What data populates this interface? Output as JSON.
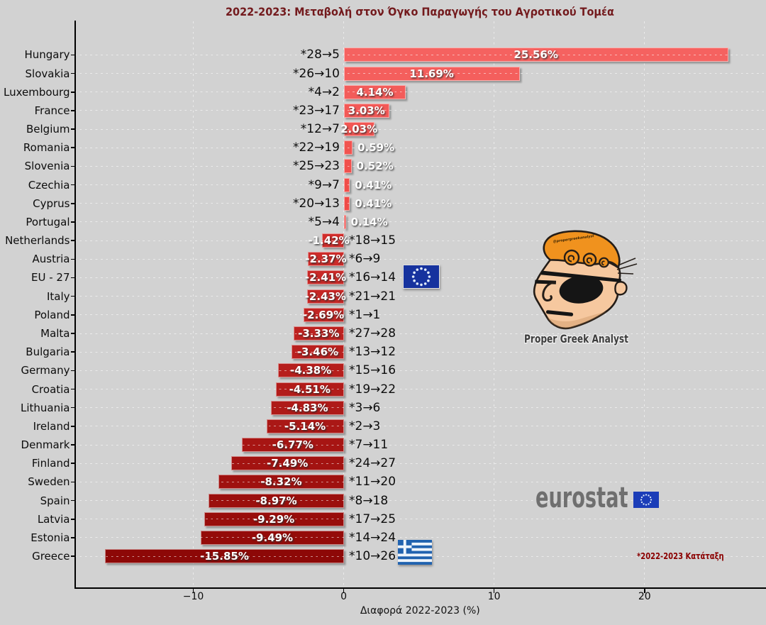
{
  "title": "2022-2023: Μεταβολή στον Όγκο Παραγωγής του Αγροτικού Τομέα",
  "title_color": "#731a1d",
  "chart_data": {
    "type": "bar",
    "orientation": "horizontal",
    "title": "2022-2023: Μεταβολή στον Όγκο Παραγωγής του Αγροτικού Τομέα",
    "xlabel": "Διαφορά 2022-2023 (%)",
    "ylabel": "",
    "xlim": [
      -17.9,
      28.1
    ],
    "xticks": [
      -10,
      0,
      10,
      20
    ],
    "xtick_labels": [
      "−10",
      "0",
      "10",
      "20"
    ],
    "grid": {
      "horizontal": true,
      "vertical": true,
      "style": "white dashed"
    },
    "legend": null,
    "background": "#d2d2d2",
    "categories": [
      "Hungary",
      "Slovakia",
      "Luxembourg",
      "France",
      "Belgium",
      "Romania",
      "Slovenia",
      "Czechia",
      "Cyprus",
      "Portugal",
      "Netherlands",
      "Austria",
      "EU - 27",
      "Italy",
      "Poland",
      "Malta",
      "Bulgaria",
      "Germany",
      "Croatia",
      "Lithuania",
      "Ireland",
      "Denmark",
      "Finland",
      "Sweden",
      "Spain",
      "Latvia",
      "Estonia",
      "Greece"
    ],
    "values": [
      25.56,
      11.69,
      4.14,
      3.03,
      2.03,
      0.59,
      0.52,
      0.41,
      0.41,
      0.14,
      -1.42,
      -2.37,
      -2.41,
      -2.43,
      -2.69,
      -3.33,
      -3.46,
      -4.38,
      -4.51,
      -4.83,
      -5.14,
      -6.77,
      -7.49,
      -8.32,
      -8.97,
      -9.29,
      -9.49,
      -15.85
    ],
    "value_labels": [
      "25.56%",
      "11.69%",
      "4.14%",
      "3.03%",
      "2.03%",
      "0.59%",
      "0.52%",
      "0.41%",
      "0.41%",
      "0.14%",
      "-1.42%",
      "-2.37%",
      "-2.41%",
      "-2.43%",
      "-2.69%",
      "-3.33%",
      "-3.46%",
      "-4.38%",
      "-4.51%",
      "-4.83%",
      "-5.14%",
      "-6.77%",
      "-7.49%",
      "-8.32%",
      "-8.97%",
      "-9.29%",
      "-9.49%",
      "-15.85%"
    ],
    "rank_labels": [
      "*28→5",
      "*26→10",
      "*4→2",
      "*23→17",
      "*12→7",
      "*22→19",
      "*25→23",
      "*9→7",
      "*20→13",
      "*5→4",
      "*18→15",
      "*6→9",
      "*16→14",
      "*21→21",
      "*1→1",
      "*27→28",
      "*13→12",
      "*15→16",
      "*19→22",
      "*3→6",
      "*2→3",
      "*7→11",
      "*24→27",
      "*11→20",
      "*8→18",
      "*17→25",
      "*14→24",
      "*10→26"
    ],
    "bar_colors": [
      "#f56260",
      "#f45f5d",
      "#f35c5a",
      "#f35957",
      "#f25653",
      "#f15350",
      "#f1504d",
      "#f04d4a",
      "#ef4a47",
      "#ee4744",
      "#d02d2b",
      "#cc2b29",
      "#c82927",
      "#c52725",
      "#c12523",
      "#bd2220",
      "#b9201e",
      "#b61e1c",
      "#b21c1a",
      "#ae1a18",
      "#aa1816",
      "#a71513",
      "#a31311",
      "#9f110f",
      "#9b0f0d",
      "#980d0b",
      "#940b09",
      "#8d0807"
    ]
  },
  "annotations": {
    "rank_note": "*2022-2023 Κατάταξη",
    "rank_note_color": "#8b0000",
    "analyst_name": "Proper Greek Analyst",
    "analyst_handle": "@propergreekanalyst",
    "eurostat_label": "eurostat"
  },
  "icons": {
    "eu_flag": "eu-flag",
    "greece_flag": "greece-flag",
    "analyst_cartoon": "pirate-analyst-cartoon"
  }
}
